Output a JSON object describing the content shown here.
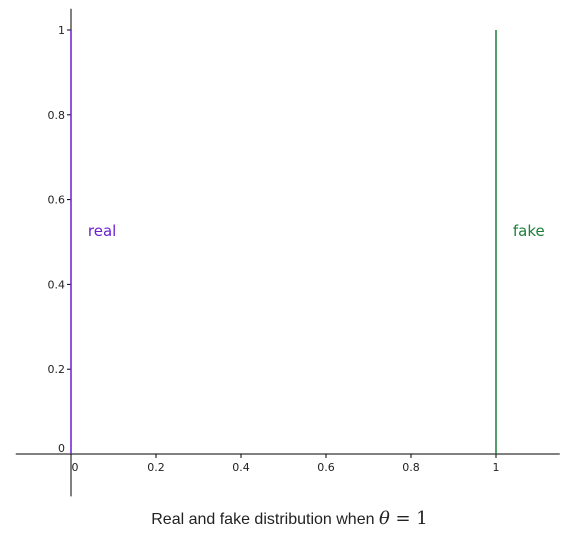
{
  "caption": {
    "text": "Real and fake distribution when",
    "math_symbol": "θ",
    "math_rest": " = 1"
  },
  "chart_data": {
    "type": "line",
    "xlim": [
      -0.13,
      1.15
    ],
    "ylim": [
      -0.1,
      1.05
    ],
    "x_ticks": [
      0,
      0.2,
      0.4,
      0.6,
      0.8,
      1
    ],
    "x_tick_labels": [
      "0",
      "0.2",
      "0.4",
      "0.6",
      "0.8",
      "1"
    ],
    "y_ticks": [
      0,
      0.2,
      0.4,
      0.6,
      0.8,
      1
    ],
    "y_tick_labels": [
      "0",
      "0.2",
      "0.4",
      "0.6",
      "0.8",
      "1"
    ],
    "grid": false,
    "series": [
      {
        "name": "real",
        "color": "#6a1fd1",
        "x": [
          0,
          0
        ],
        "y": [
          0,
          1
        ],
        "label_at": [
          0.035,
          0.5
        ]
      },
      {
        "name": "fake",
        "color": "#1a7f3a",
        "x": [
          1,
          1
        ],
        "y": [
          0,
          1
        ],
        "label_at": [
          1.035,
          0.5
        ]
      }
    ]
  }
}
